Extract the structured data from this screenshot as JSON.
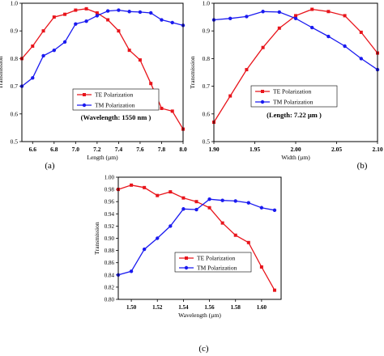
{
  "chart_data": [
    {
      "type": "line",
      "panel_label": "(a)",
      "xlabel": "Length (µm)",
      "ylabel": "Transmission",
      "xlim": [
        6.5,
        8.0
      ],
      "ylim": [
        0.5,
        1.0
      ],
      "xticks": [
        "6.6",
        "6.8",
        "7.0",
        "7.2",
        "7.4",
        "7.6",
        "7.8",
        "8.0"
      ],
      "yticks": [
        "0.5",
        "0.6",
        "0.7",
        "0.8",
        "0.9",
        "1.0"
      ],
      "legend_position": "bottom-center",
      "annotation": "(Wavelength: 1550 nm )",
      "series": [
        {
          "name": "TE Polarization",
          "color": "#e8141b",
          "marker": "square",
          "x": [
            6.5,
            6.6,
            6.7,
            6.8,
            6.9,
            7.0,
            7.1,
            7.2,
            7.3,
            7.4,
            7.5,
            7.6,
            7.7,
            7.8,
            7.9,
            8.0
          ],
          "y": [
            0.8,
            0.845,
            0.9,
            0.95,
            0.96,
            0.975,
            0.98,
            0.965,
            0.94,
            0.9,
            0.83,
            0.795,
            0.71,
            0.62,
            0.61,
            0.545
          ]
        },
        {
          "name": "TM Polarization",
          "color": "#1a1af0",
          "marker": "circle",
          "x": [
            6.5,
            6.6,
            6.7,
            6.8,
            6.9,
            7.0,
            7.1,
            7.2,
            7.3,
            7.4,
            7.5,
            7.6,
            7.7,
            7.8,
            7.9,
            8.0
          ],
          "y": [
            0.7,
            0.73,
            0.81,
            0.83,
            0.86,
            0.925,
            0.935,
            0.955,
            0.972,
            0.975,
            0.97,
            0.968,
            0.965,
            0.94,
            0.93,
            0.92
          ]
        }
      ]
    },
    {
      "type": "line",
      "panel_label": "(b)",
      "xlabel": "Width (µm)",
      "ylabel": "Transmission",
      "xlim": [
        1.9,
        2.1
      ],
      "ylim": [
        0.5,
        1.0
      ],
      "xticks": [
        "1.90",
        "1.95",
        "2.00",
        "2.05",
        "2.10"
      ],
      "yticks": [
        "0.5",
        "0.6",
        "0.7",
        "0.8",
        "0.9",
        "1.0"
      ],
      "legend_position": "bottom-center",
      "annotation": "(Length: 7.22 µm )",
      "series": [
        {
          "name": "TE Polarization",
          "color": "#e8141b",
          "marker": "square",
          "x": [
            1.9,
            1.92,
            1.94,
            1.96,
            1.98,
            2.0,
            2.02,
            2.04,
            2.06,
            2.08,
            2.1
          ],
          "y": [
            0.57,
            0.665,
            0.76,
            0.84,
            0.91,
            0.955,
            0.978,
            0.97,
            0.955,
            0.895,
            0.82
          ]
        },
        {
          "name": "TM Polarization",
          "color": "#1a1af0",
          "marker": "circle",
          "x": [
            1.9,
            1.92,
            1.94,
            1.96,
            1.98,
            2.0,
            2.02,
            2.04,
            2.06,
            2.08,
            2.1
          ],
          "y": [
            0.94,
            0.945,
            0.952,
            0.97,
            0.968,
            0.945,
            0.912,
            0.88,
            0.845,
            0.8,
            0.76
          ]
        }
      ]
    },
    {
      "type": "line",
      "panel_label": "(c)",
      "xlabel": "Wavelength (µm)",
      "ylabel": "Transmission",
      "xlim": [
        1.49,
        1.615
      ],
      "ylim": [
        0.8,
        1.0
      ],
      "xticks": [
        "1.50",
        "1.52",
        "1.54",
        "1.56",
        "1.58",
        "1.60"
      ],
      "yticks": [
        "0.80",
        "0.82",
        "0.84",
        "0.86",
        "0.88",
        "0.90",
        "0.92",
        "0.94",
        "0.96",
        "0.98",
        "1.00"
      ],
      "legend_position": "bottom-center",
      "annotation": "",
      "series": [
        {
          "name": "TE Polarization",
          "color": "#e8141b",
          "marker": "square",
          "x": [
            1.49,
            1.5,
            1.51,
            1.52,
            1.53,
            1.54,
            1.55,
            1.56,
            1.57,
            1.58,
            1.59,
            1.6,
            1.61
          ],
          "y": [
            0.98,
            0.987,
            0.983,
            0.97,
            0.976,
            0.966,
            0.96,
            0.95,
            0.925,
            0.905,
            0.893,
            0.853,
            0.815
          ]
        },
        {
          "name": "TM Polarization",
          "color": "#1a1af0",
          "marker": "circle",
          "x": [
            1.49,
            1.5,
            1.51,
            1.52,
            1.53,
            1.54,
            1.55,
            1.56,
            1.57,
            1.58,
            1.59,
            1.6,
            1.61
          ],
          "y": [
            0.84,
            0.846,
            0.882,
            0.9,
            0.92,
            0.948,
            0.947,
            0.964,
            0.962,
            0.961,
            0.958,
            0.95,
            0.946
          ]
        }
      ]
    }
  ]
}
